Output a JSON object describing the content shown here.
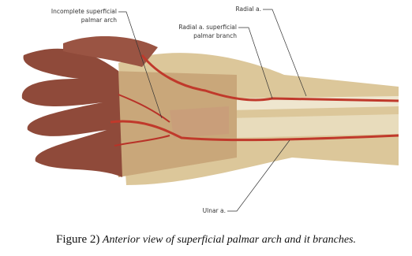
{
  "labels": [
    {
      "lines": [
        "Incomplete superficial",
        "palmar arch"
      ]
    },
    {
      "lines": [
        "Radial a. superficial",
        "palmar branch"
      ]
    },
    {
      "lines": [
        "Radial a."
      ]
    },
    {
      "lines": [
        "Ulnar a."
      ]
    }
  ],
  "caption": {
    "label": "Figure 2)",
    "text": "Anterior view of superficial palmar arch and it branches."
  }
}
